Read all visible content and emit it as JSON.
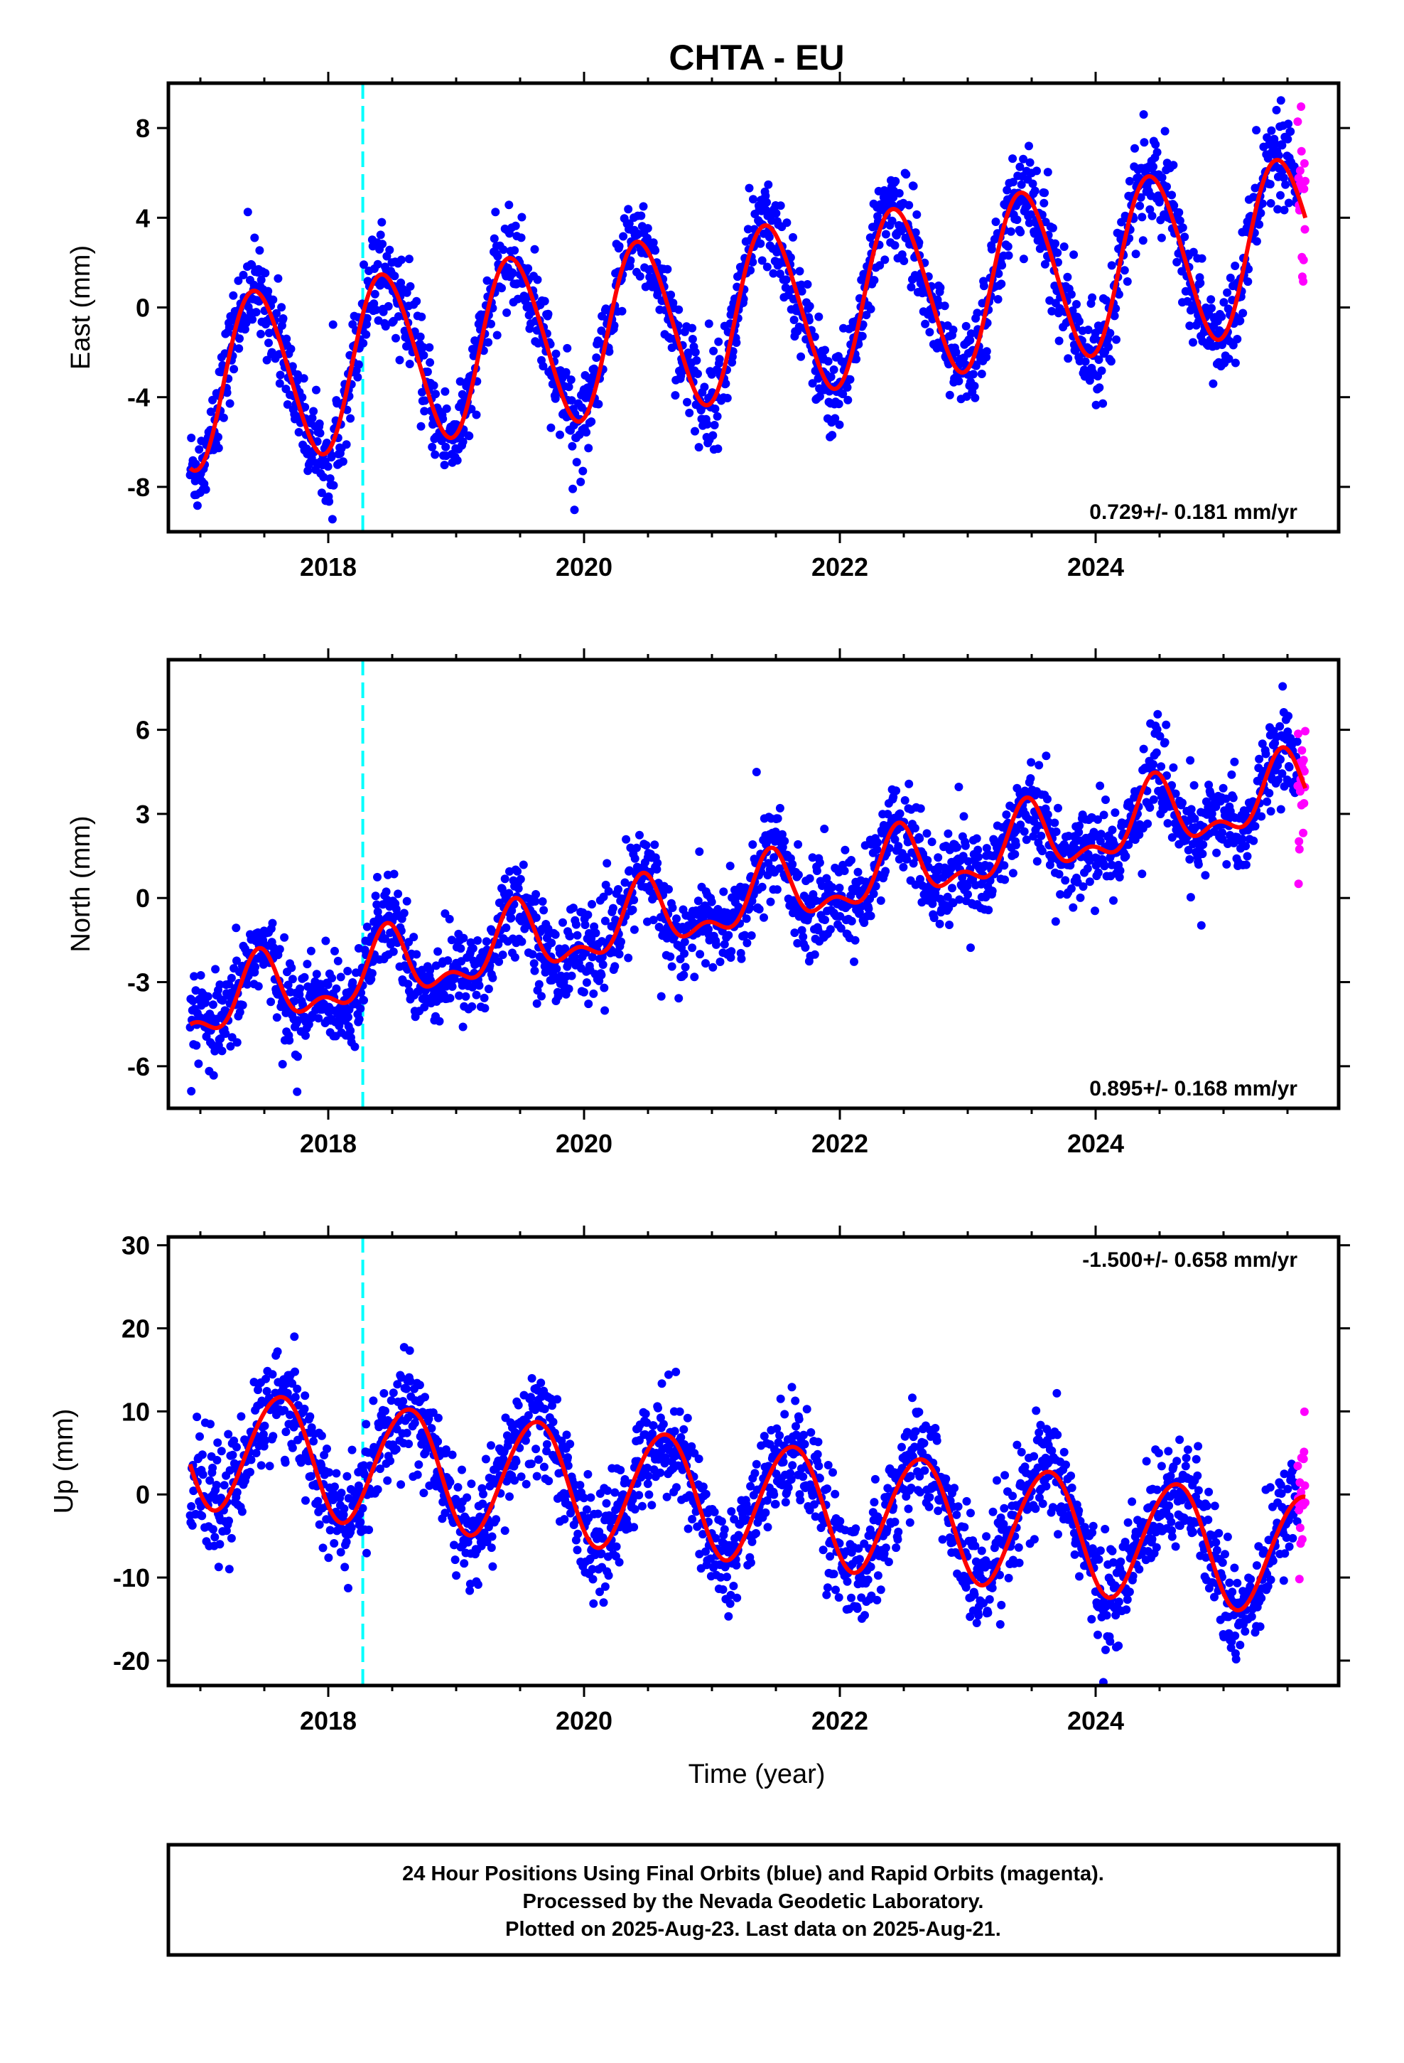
{
  "title": "CHTA - EU",
  "xlabel": "Time (year)",
  "footer": {
    "line1": "24 Hour Positions Using Final Orbits (blue) and Rapid Orbits (magenta).",
    "line2": "Processed by the Nevada Geodetic Laboratory.",
    "line3": "Plotted on 2025-Aug-23. Last data on 2025-Aug-21."
  },
  "colors": {
    "final_orbits": "#0000ff",
    "rapid_orbits": "#ff00ff",
    "model_fit": "#ff0000",
    "event_line": "#00ffff"
  },
  "chart_data": [
    {
      "type": "scatter",
      "component": "east",
      "ylabel": "East (mm)",
      "xlim": [
        2016.75,
        2025.9
      ],
      "ylim": [
        -10,
        10
      ],
      "xticks": [
        2018,
        2020,
        2022,
        2024
      ],
      "xtick_labels": [
        "2018",
        "2020",
        "2022",
        "2024"
      ],
      "yticks": [
        -8,
        -4,
        0,
        4,
        8
      ],
      "ytick_labels": [
        "-8",
        "-4",
        "0",
        "4",
        "8"
      ],
      "rate_label": "0.729+/- 0.181 mm/yr",
      "rate_position": "bottom-right",
      "event_line_x": 2018.27,
      "data_span": [
        2016.92,
        2025.64
      ],
      "model": {
        "intercept": -3.35,
        "trend": 0.729,
        "trend_ref": 2017.0,
        "annual_amp": 3.8,
        "annual_peak": 0.44,
        "semiannual_amp": 0.3,
        "semiannual_peak": 0.3
      },
      "scatter_noise_mm": 1.0,
      "series": [
        {
          "name": "Final Orbits",
          "color": "#0000ff",
          "span": [
            2016.92,
            2025.58
          ]
        },
        {
          "name": "Rapid Orbits",
          "color": "#ff00ff",
          "span": [
            2025.58,
            2025.64
          ]
        }
      ]
    },
    {
      "type": "scatter",
      "component": "north",
      "ylabel": "North (mm)",
      "xlim": [
        2016.75,
        2025.9
      ],
      "ylim": [
        -7.5,
        8.5
      ],
      "xticks": [
        2018,
        2020,
        2022,
        2024
      ],
      "xtick_labels": [
        "2018",
        "2020",
        "2022",
        "2024"
      ],
      "yticks": [
        -6,
        -3,
        0,
        3,
        6
      ],
      "ytick_labels": [
        "-6",
        "-3",
        "0",
        "3",
        "6"
      ],
      "rate_label": "0.895+/- 0.168 mm/yr",
      "rate_position": "bottom-right",
      "event_line_x": 2018.27,
      "data_span": [
        2016.92,
        2025.64
      ],
      "model": {
        "intercept": -3.9,
        "trend": 0.895,
        "trend_ref": 2017.0,
        "annual_amp": 1.1,
        "annual_peak": 0.46,
        "semiannual_amp": 0.6,
        "semiannual_peak": 0.46
      },
      "scatter_noise_mm": 0.8,
      "series": [
        {
          "name": "Final Orbits",
          "color": "#0000ff",
          "span": [
            2016.92,
            2025.58
          ]
        },
        {
          "name": "Rapid Orbits",
          "color": "#ff00ff",
          "span": [
            2025.58,
            2025.64
          ]
        }
      ]
    },
    {
      "type": "scatter",
      "component": "up",
      "ylabel": "Up (mm)",
      "xlim": [
        2016.75,
        2025.9
      ],
      "ylim": [
        -23,
        31
      ],
      "xticks": [
        2018,
        2020,
        2022,
        2024
      ],
      "xtick_labels": [
        "2018",
        "2020",
        "2022",
        "2024"
      ],
      "yticks": [
        -20,
        -10,
        0,
        10,
        20,
        30
      ],
      "ytick_labels": [
        "-20",
        "-10",
        "0",
        "10",
        "20",
        "30"
      ],
      "rate_label": "-1.500+/- 0.658 mm/yr",
      "rate_position": "top-right",
      "event_line_x": 2018.27,
      "data_span": [
        2016.92,
        2025.64
      ],
      "model": {
        "intercept": 5.7,
        "trend": -1.5,
        "trend_ref": 2017.0,
        "annual_amp": 7.2,
        "annual_peak": 0.62,
        "semiannual_amp": 0.4,
        "semiannual_peak": 0.3
      },
      "scatter_noise_mm": 3.2,
      "series": [
        {
          "name": "Final Orbits",
          "color": "#0000ff",
          "span": [
            2016.92,
            2025.58
          ]
        },
        {
          "name": "Rapid Orbits",
          "color": "#ff00ff",
          "span": [
            2025.58,
            2025.64
          ]
        }
      ]
    }
  ]
}
